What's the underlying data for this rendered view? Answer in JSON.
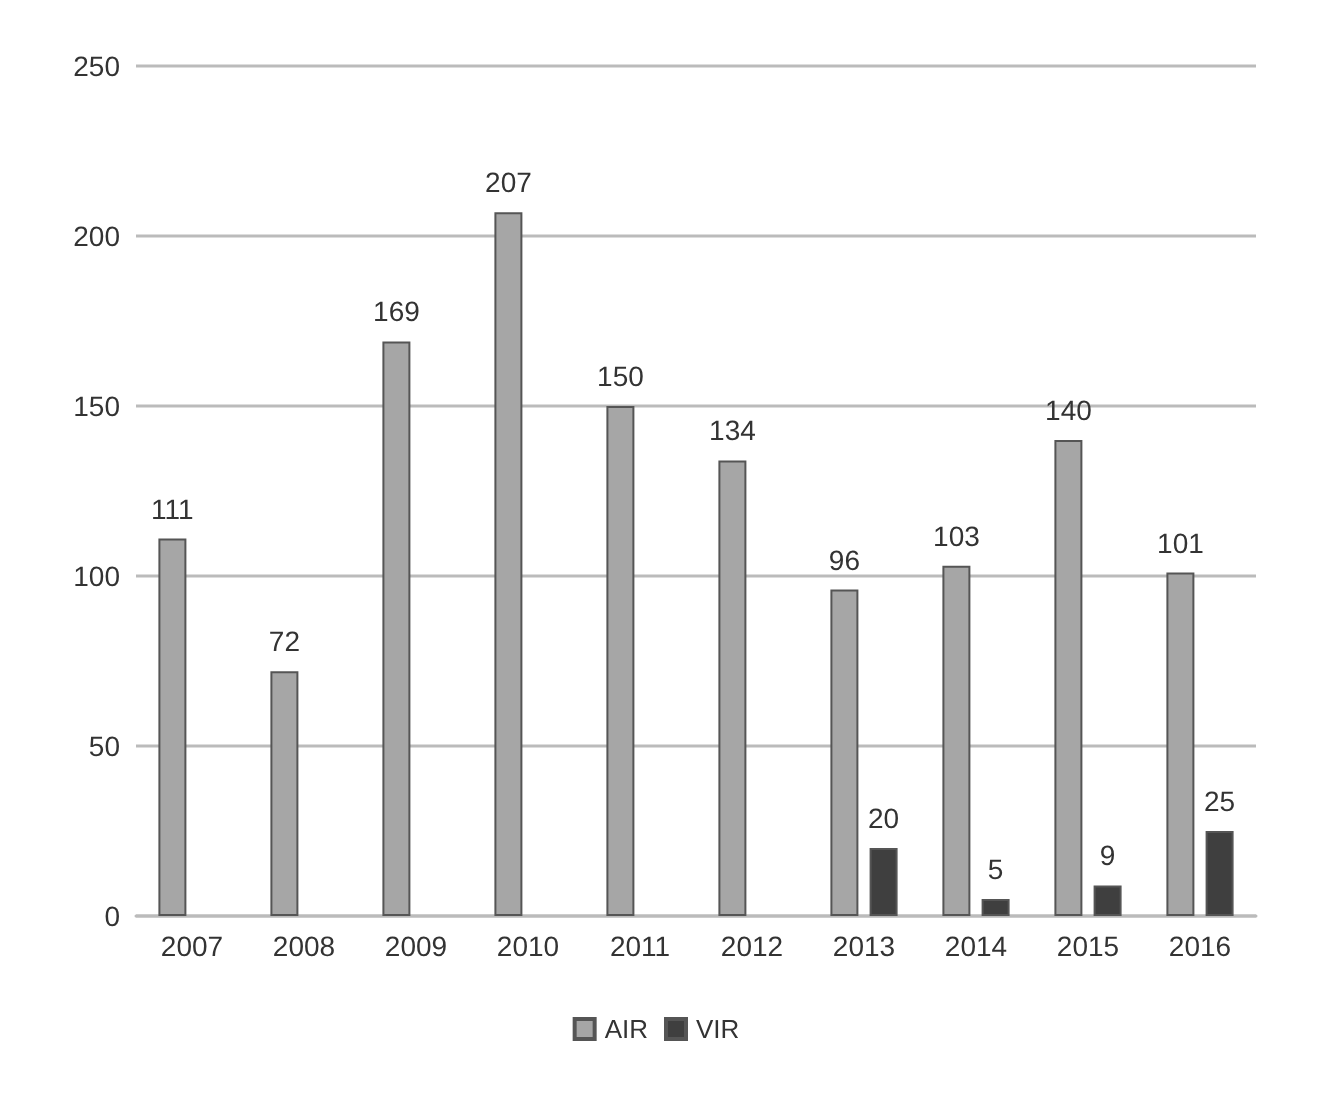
{
  "chart_data": {
    "type": "bar",
    "categories": [
      "2007",
      "2008",
      "2009",
      "2010",
      "2011",
      "2012",
      "2013",
      "2014",
      "2015",
      "2016"
    ],
    "series": [
      {
        "name": "AIR",
        "color": "#a6a6a6",
        "values": [
          111,
          72,
          169,
          207,
          150,
          134,
          96,
          103,
          140,
          101
        ]
      },
      {
        "name": "VIR",
        "color": "#3f3f3f",
        "values": [
          null,
          null,
          null,
          null,
          null,
          null,
          20,
          5,
          9,
          25
        ]
      }
    ],
    "ylim": [
      0,
      250
    ],
    "yticks": [
      0,
      50,
      100,
      150,
      200,
      250
    ],
    "grid": "y",
    "legend": "bottom",
    "data_labels": true
  }
}
